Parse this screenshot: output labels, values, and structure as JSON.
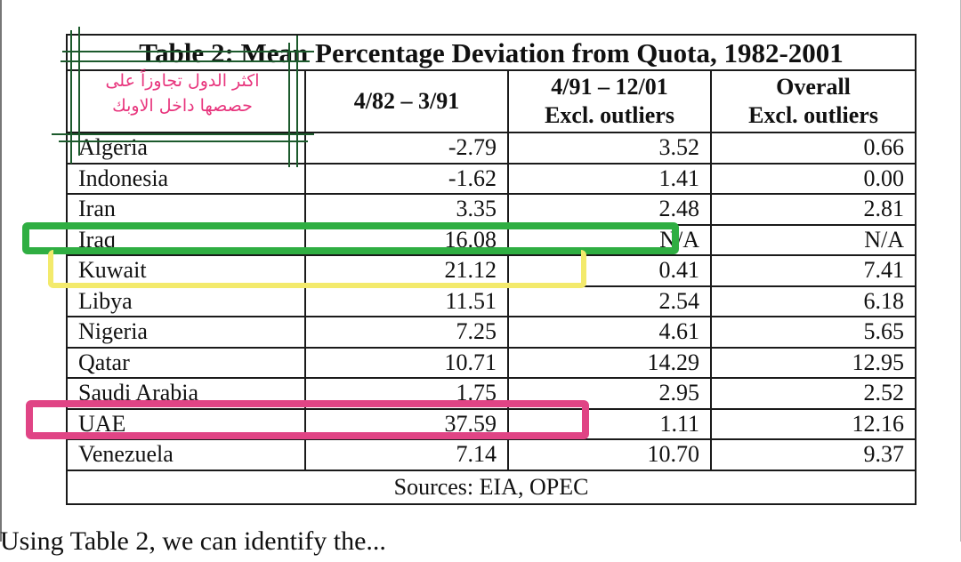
{
  "table": {
    "title": "Table 2: Mean Percentage Deviation from Quota, 1982-2001",
    "headers": [
      {
        "line1": "",
        "line2": ""
      },
      {
        "line1": "4/82 – 3/91",
        "line2": ""
      },
      {
        "line1": "4/91 – 12/01",
        "line2": "Excl. outliers"
      },
      {
        "line1": "Overall",
        "line2": "Excl. outliers"
      }
    ],
    "rows": [
      {
        "country": "Algeria",
        "period1": "-2.79",
        "period2": "3.52",
        "overall": "0.66"
      },
      {
        "country": "Indonesia",
        "period1": "-1.62",
        "period2": "1.41",
        "overall": "0.00"
      },
      {
        "country": "Iran",
        "period1": "3.35",
        "period2": "2.48",
        "overall": "2.81"
      },
      {
        "country": "Iraq",
        "period1": "16.08",
        "period2": "N/A",
        "overall": "N/A"
      },
      {
        "country": "Kuwait",
        "period1": "21.12",
        "period2": "0.41",
        "overall": "7.41"
      },
      {
        "country": "Libya",
        "period1": "11.51",
        "period2": "2.54",
        "overall": "6.18"
      },
      {
        "country": "Nigeria",
        "period1": "7.25",
        "period2": "4.61",
        "overall": "5.65"
      },
      {
        "country": "Qatar",
        "period1": "10.71",
        "period2": "14.29",
        "overall": "12.95"
      },
      {
        "country": "Saudi Arabia",
        "period1": "1.75",
        "period2": "2.95",
        "overall": "2.52"
      },
      {
        "country": "UAE",
        "period1": "37.59",
        "period2": "1.11",
        "overall": "12.16"
      },
      {
        "country": "Venezuela",
        "period1": "7.14",
        "period2": "10.70",
        "overall": "9.37"
      }
    ],
    "source": "Sources: EIA, OPEC"
  },
  "annotation": {
    "line1": "اكثر الدول تجاوزاً على",
    "line2": "حصصها داخل الاوبك",
    "text_color": "#e8357d",
    "frame_color": "#1c5a2c"
  },
  "highlights": [
    {
      "name": "iraq-highlight",
      "color": "#2fae42"
    },
    {
      "name": "kuwait-highlight",
      "color": "#f3ea6c"
    },
    {
      "name": "uae-highlight",
      "color": "#e04485"
    }
  ],
  "bottom_text": "Using Table 2, we can identify the... "
}
